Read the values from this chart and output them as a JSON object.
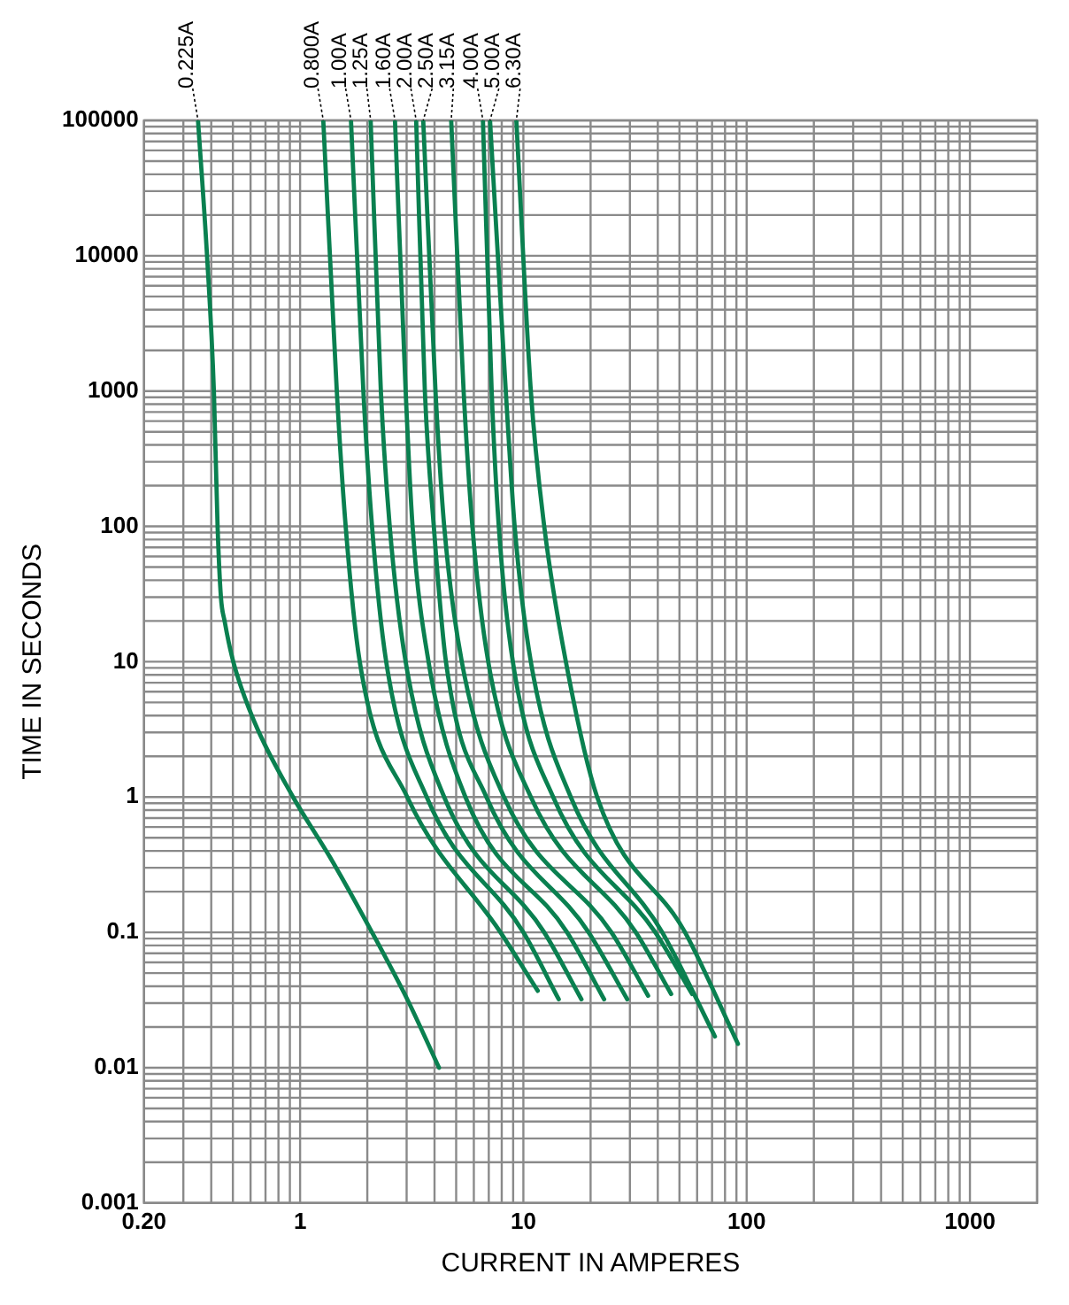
{
  "chart_data": {
    "type": "line",
    "xlabel": "CURRENT IN AMPERES",
    "ylabel": "TIME IN SECONDS",
    "log": "xy",
    "grid": true,
    "legend": false,
    "marker": "none",
    "line_style": "solid",
    "xlim": [
      0.2,
      2000
    ],
    "xticks": [
      {
        "value": 0.2,
        "label": "0.20"
      },
      1,
      10,
      100,
      1000
    ],
    "ylim": [
      0.001,
      100000
    ],
    "yticks": [
      0.001,
      0.01,
      0.1,
      1,
      10,
      100,
      1000,
      10000,
      100000
    ],
    "series": [
      {
        "name": "0.225A",
        "color": "#0a8050",
        "x": [
          0.349,
          0.383,
          0.411,
          0.427,
          0.442,
          0.459,
          0.502,
          0.624,
          0.93,
          1.36,
          2.1,
          3.02,
          4.19
        ],
        "values": [
          100000,
          10000,
          1000,
          100,
          30,
          20,
          10,
          3.6,
          1,
          0.36,
          0.1,
          0.032,
          0.01
        ]
      },
      {
        "name": "0.800A",
        "color": "#0a8050",
        "x": [
          1.27,
          1.46,
          1.6,
          1.85,
          3.02,
          7.9,
          11.6
        ],
        "values": [
          100000,
          1000,
          100,
          10,
          1,
          0.1,
          0.037
        ]
      },
      {
        "name": "1.00A",
        "color": "#0a8050",
        "x": [
          1.69,
          1.92,
          2.1,
          2.43,
          3.69,
          10,
          14.4
        ],
        "values": [
          100000,
          1000,
          100,
          10,
          1,
          0.1,
          0.032
        ]
      },
      {
        "name": "1.25A",
        "color": "#0a8050",
        "x": [
          2.07,
          2.3,
          2.52,
          2.97,
          4.42,
          12.4,
          18.2
        ],
        "values": [
          100000,
          1000,
          100,
          10,
          1,
          0.1,
          0.032
        ]
      },
      {
        "name": "1.60A",
        "color": "#0a8050",
        "x": [
          2.66,
          2.97,
          3.19,
          3.76,
          5.5,
          15.7,
          23
        ],
        "values": [
          100000,
          1000,
          100,
          10,
          1,
          0.1,
          0.032
        ]
      },
      {
        "name": "2.00A",
        "color": "#0a8050",
        "x": [
          3.31,
          3.62,
          3.97,
          4.5,
          6.83,
          19.6,
          29.2
        ],
        "values": [
          100000,
          1000,
          100,
          10,
          1,
          0.1,
          0.032
        ]
      },
      {
        "name": "2.50A",
        "color": "#0a8050",
        "x": [
          3.56,
          4.04,
          4.42,
          5.3,
          8.19,
          24.8,
          36.2
        ],
        "values": [
          100000,
          1000,
          100,
          10,
          1,
          0.1,
          0.034
        ]
      },
      {
        "name": "3.15A",
        "color": "#0a8050",
        "x": [
          4.75,
          5.4,
          5.91,
          6.96,
          10.8,
          31.9,
          45.9
        ],
        "values": [
          100000,
          1000,
          100,
          10,
          1,
          0.1,
          0.035
        ]
      },
      {
        "name": "4.00A",
        "color": "#0a8050",
        "x": [
          6.59,
          7.21,
          7.76,
          8.97,
          13.6,
          39,
          57
        ],
        "values": [
          100000,
          1000,
          100,
          10,
          1,
          0.1,
          0.035
        ]
      },
      {
        "name": "5.00A",
        "color": "#0a8050",
        "x": [
          7.09,
          8.34,
          9.14,
          10.8,
          16.3,
          41.9,
          72.1
        ],
        "values": [
          100000,
          1000,
          100,
          10,
          1,
          0.1,
          0.017
        ]
      },
      {
        "name": "6.30A",
        "color": "#0a8050",
        "x": [
          9.3,
          10.8,
          12.4,
          15.5,
          21.4,
          53,
          91.4
        ],
        "values": [
          100000,
          1000,
          100,
          10,
          1,
          0.1,
          0.015
        ]
      }
    ]
  }
}
